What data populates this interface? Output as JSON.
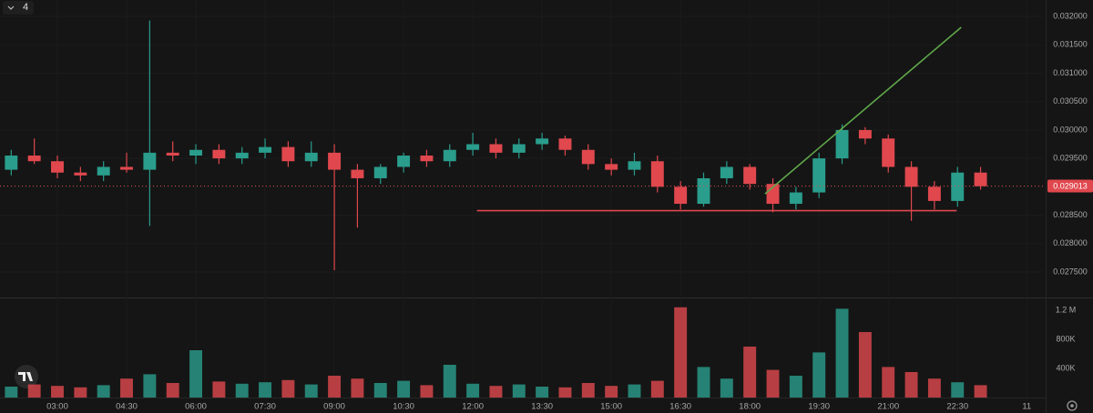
{
  "chart_data": {
    "type": "candlestick",
    "interval_badge": "4",
    "x": [
      2.0,
      2.5,
      3.0,
      3.5,
      4.0,
      4.5,
      5.0,
      5.5,
      6.0,
      6.5,
      7.0,
      7.5,
      8.0,
      8.5,
      9.0,
      9.5,
      10.0,
      10.5,
      11.0,
      11.5,
      12.0,
      12.5,
      13.0,
      13.5,
      14.0,
      14.5,
      15.0,
      15.5,
      16.0,
      16.5,
      17.0,
      17.5,
      18.0,
      18.5,
      19.0,
      19.5,
      20.0,
      20.5,
      21.0,
      21.5,
      22.0,
      22.5,
      23.0
    ],
    "open": [
      0.0293,
      0.02955,
      0.02945,
      0.02925,
      0.0292,
      0.02935,
      0.0293,
      0.0296,
      0.02955,
      0.02965,
      0.0295,
      0.0296,
      0.0297,
      0.02945,
      0.0296,
      0.0293,
      0.02915,
      0.02935,
      0.02955,
      0.02945,
      0.02965,
      0.02975,
      0.0296,
      0.02975,
      0.02985,
      0.02965,
      0.0294,
      0.0293,
      0.02945,
      0.029,
      0.0287,
      0.02915,
      0.02935,
      0.02905,
      0.0287,
      0.0289,
      0.0295,
      0.03,
      0.02985,
      0.02935,
      0.029,
      0.02875,
      0.02925
    ],
    "high": [
      0.02965,
      0.02985,
      0.02955,
      0.02935,
      0.02945,
      0.0296,
      0.03193,
      0.0298,
      0.02975,
      0.02975,
      0.0297,
      0.02985,
      0.0298,
      0.0298,
      0.02975,
      0.0294,
      0.0294,
      0.0296,
      0.02965,
      0.02975,
      0.02995,
      0.02985,
      0.02985,
      0.02995,
      0.0299,
      0.02975,
      0.0295,
      0.0296,
      0.02955,
      0.0291,
      0.02925,
      0.02945,
      0.0294,
      0.02915,
      0.029,
      0.0296,
      0.0301,
      0.03005,
      0.02992,
      0.02945,
      0.0291,
      0.02935,
      0.02935
    ],
    "low": [
      0.0292,
      0.0294,
      0.02915,
      0.0291,
      0.0291,
      0.02925,
      0.02831,
      0.02945,
      0.0294,
      0.0294,
      0.0294,
      0.0295,
      0.02935,
      0.02935,
      0.02753,
      0.02828,
      0.02905,
      0.02925,
      0.02935,
      0.02935,
      0.02955,
      0.0295,
      0.0295,
      0.02965,
      0.02955,
      0.0293,
      0.0292,
      0.0292,
      0.0289,
      0.0286,
      0.02865,
      0.02905,
      0.02895,
      0.02855,
      0.0286,
      0.0288,
      0.0294,
      0.02975,
      0.02925,
      0.0284,
      0.0286,
      0.02865,
      0.02895
    ],
    "close": [
      0.02955,
      0.02945,
      0.02925,
      0.0292,
      0.02935,
      0.0293,
      0.0296,
      0.02955,
      0.02965,
      0.0295,
      0.0296,
      0.0297,
      0.02945,
      0.0296,
      0.0293,
      0.02915,
      0.02935,
      0.02955,
      0.02945,
      0.02965,
      0.02975,
      0.0296,
      0.02975,
      0.02985,
      0.02965,
      0.0294,
      0.0293,
      0.02945,
      0.029,
      0.0287,
      0.02915,
      0.02935,
      0.02905,
      0.0287,
      0.0289,
      0.0295,
      0.03,
      0.02985,
      0.02935,
      0.029,
      0.02875,
      0.02925,
      0.02901
    ],
    "volume": [
      150000,
      180000,
      160000,
      140000,
      170000,
      260000,
      320000,
      200000,
      650000,
      220000,
      190000,
      210000,
      240000,
      180000,
      300000,
      260000,
      200000,
      230000,
      170000,
      450000,
      190000,
      160000,
      180000,
      150000,
      140000,
      200000,
      160000,
      180000,
      230000,
      1240000,
      420000,
      260000,
      700000,
      380000,
      300000,
      620000,
      1220000,
      900000,
      420000,
      350000,
      260000,
      210000,
      170000
    ],
    "up_color": "#2a9d8c",
    "down_color": "#e0484e",
    "xlim": [
      1.757,
      24.35
    ],
    "xticks": [
      {
        "value": 3,
        "label": "03:00"
      },
      {
        "value": 4.5,
        "label": "04:30"
      },
      {
        "value": 6,
        "label": "06:00"
      },
      {
        "value": 7.5,
        "label": "07:30"
      },
      {
        "value": 9,
        "label": "09:00"
      },
      {
        "value": 10.5,
        "label": "10:30"
      },
      {
        "value": 12,
        "label": "12:00"
      },
      {
        "value": 13.5,
        "label": "13:30"
      },
      {
        "value": 15,
        "label": "15:00"
      },
      {
        "value": 16.5,
        "label": "16:30"
      },
      {
        "value": 18,
        "label": "18:00"
      },
      {
        "value": 19.5,
        "label": "19:30"
      },
      {
        "value": 21,
        "label": "21:00"
      },
      {
        "value": 22.5,
        "label": "22:30"
      },
      {
        "value": 24,
        "label": "11"
      }
    ],
    "ylim": [
      0.02705,
      0.03229
    ],
    "yticks": [
      {
        "value": 0.0275,
        "label": "0.027500"
      },
      {
        "value": 0.028,
        "label": "0.028000"
      },
      {
        "value": 0.0285,
        "label": "0.028500"
      },
      {
        "value": 0.029,
        "label": "0.029000"
      },
      {
        "value": 0.0295,
        "label": "0.029500"
      },
      {
        "value": 0.03,
        "label": "0.030000"
      },
      {
        "value": 0.0305,
        "label": "0.030500"
      },
      {
        "value": 0.031,
        "label": "0.031000"
      },
      {
        "value": 0.0315,
        "label": "0.031500"
      },
      {
        "value": 0.032,
        "label": "0.032000"
      }
    ],
    "volume_lim": [
      0,
      1362500
    ],
    "volume_ticks": [
      {
        "value": 400000,
        "label": "400K"
      },
      {
        "value": 800000,
        "label": "800K"
      },
      {
        "value": 1200000,
        "label": "1.2 M"
      }
    ],
    "last_price": {
      "value": 0.029013,
      "label": "0.029013"
    },
    "trend_lines": [
      {
        "x": [
          12.09,
          22.48
        ],
        "y": [
          0.02858,
          0.02858
        ],
        "color": "#e0484e"
      },
      {
        "x": [
          18.33,
          22.58
        ],
        "y": [
          0.028875,
          0.03181
        ],
        "color": "#5fa84a"
      }
    ]
  }
}
